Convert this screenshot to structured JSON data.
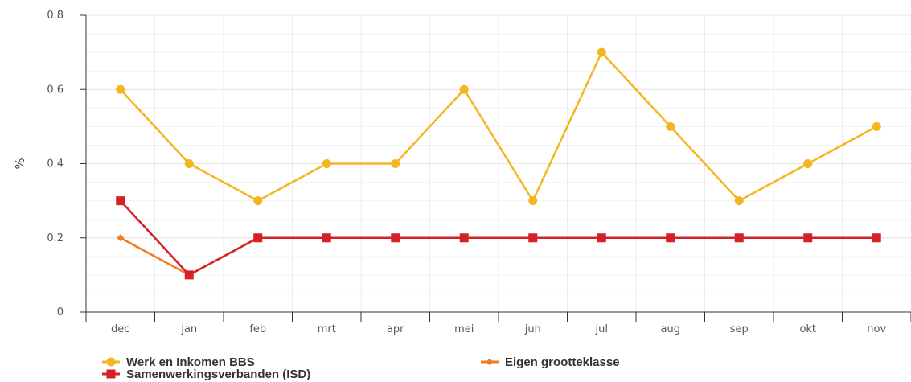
{
  "chart_data": {
    "type": "line",
    "categories": [
      "dec",
      "jan",
      "feb",
      "mrt",
      "apr",
      "mei",
      "jun",
      "jul",
      "aug",
      "sep",
      "okt",
      "nov"
    ],
    "ylabel": "%",
    "ylim": [
      0,
      0.8
    ],
    "yticks": [
      "0",
      "0.2",
      "0.4",
      "0.6",
      "0.8"
    ],
    "grid": true,
    "legend_position": "bottom",
    "series": [
      {
        "name": "Werk en Inkomen BBS",
        "color": "#f5b521",
        "marker": "circle",
        "values": [
          0.6,
          0.4,
          0.3,
          0.4,
          0.4,
          0.6,
          0.3,
          0.7,
          0.5,
          0.3,
          0.4,
          0.5
        ]
      },
      {
        "name": "Eigen grootteklasse",
        "color": "#f07c22",
        "marker": "diamond",
        "values": [
          0.2,
          0.1,
          0.2,
          0.2,
          0.2,
          0.2,
          0.2,
          0.2,
          0.2,
          0.2,
          0.2,
          0.2
        ]
      },
      {
        "name": "Samenwerkingsverbanden (ISD)",
        "color": "#d42027",
        "marker": "square",
        "values": [
          0.3,
          0.1,
          0.2,
          0.2,
          0.2,
          0.2,
          0.2,
          0.2,
          0.2,
          0.2,
          0.2,
          0.2
        ]
      }
    ]
  }
}
